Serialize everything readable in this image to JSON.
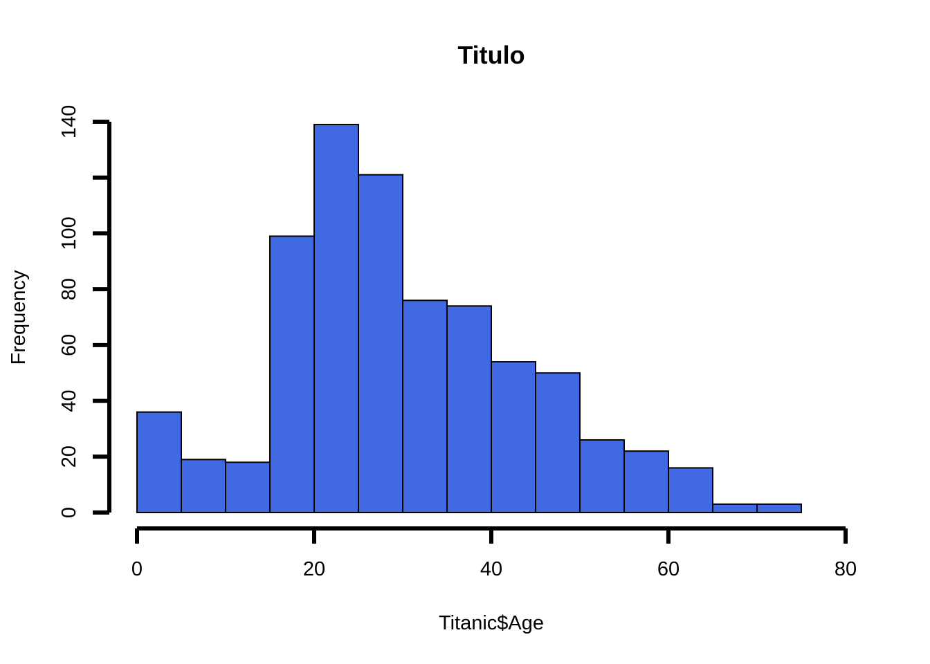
{
  "chart_data": {
    "type": "bar",
    "title": "Titulo",
    "xlabel": "Titanic$Age",
    "ylabel": "Frequency",
    "bin_edges": [
      0,
      5,
      10,
      15,
      20,
      25,
      30,
      35,
      40,
      45,
      50,
      55,
      60,
      65,
      70,
      75
    ],
    "values": [
      36,
      19,
      18,
      99,
      139,
      121,
      76,
      74,
      54,
      50,
      26,
      22,
      16,
      3,
      3
    ],
    "xlim": [
      0,
      80
    ],
    "ylim": [
      0,
      140
    ],
    "x_ticks": [
      0,
      20,
      40,
      60,
      80
    ],
    "y_ticks": [
      0,
      20,
      40,
      60,
      80,
      100,
      120,
      140
    ],
    "x_tick_labels": [
      "0",
      "20",
      "40",
      "60",
      "80"
    ],
    "y_tick_labels": [
      "0",
      "20",
      "40",
      "60",
      "80",
      "100",
      "",
      "140"
    ],
    "bar_color": "#4169E1",
    "grid": false,
    "legend": "none"
  }
}
